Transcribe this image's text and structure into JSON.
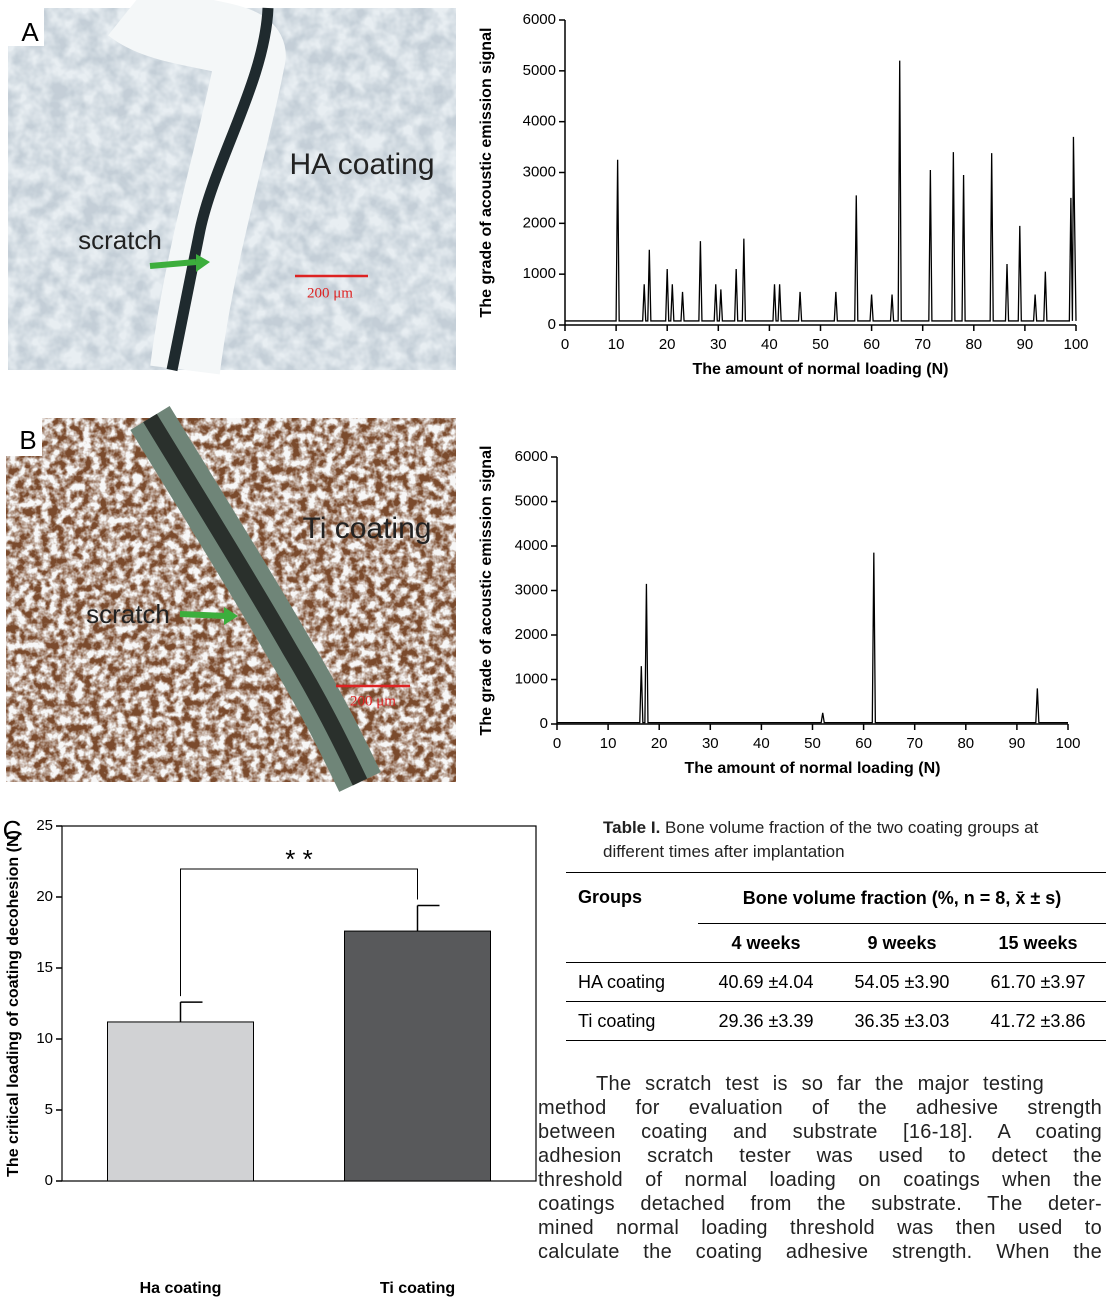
{
  "figure_panels": [
    {
      "label": "A",
      "photo_labels": {
        "coating": "HA coating",
        "arrow": "scratch",
        "scale": "200 μm"
      }
    },
    {
      "label": "B",
      "photo_labels": {
        "coating": "Ti coating",
        "arrow": "scratch",
        "scale": "200 μm"
      }
    },
    {
      "label": "C"
    }
  ],
  "chart_data": [
    {
      "type": "line",
      "y_label": "The grade of acoustic emission signal",
      "x_label": "The amount of normal loading (N)",
      "x": [
        0,
        10,
        10.3,
        10.6,
        15.2,
        15.5,
        15.8,
        16.2,
        16.5,
        16.8,
        19.7,
        20,
        20.3,
        20.7,
        21,
        21.3,
        22.7,
        23,
        23.3,
        26.2,
        26.5,
        26.8,
        29.2,
        29.5,
        29.8,
        30.2,
        30.5,
        30.8,
        33.2,
        33.5,
        33.8,
        34.7,
        35,
        35.3,
        40.7,
        41,
        41.3,
        41.7,
        42,
        42.3,
        45.7,
        46,
        46.3,
        52.7,
        53,
        53.3,
        56.7,
        57,
        57.3,
        59.7,
        60,
        60.3,
        63.7,
        64,
        64.3,
        65.2,
        65.5,
        65.8,
        71.2,
        71.5,
        71.8,
        75.7,
        76,
        76.3,
        77.7,
        78,
        78.3,
        83.2,
        83.5,
        83.8,
        86.2,
        86.5,
        86.8,
        88.7,
        89,
        89.3,
        91.7,
        92,
        92.3,
        93.7,
        94,
        94.3,
        98.7,
        99,
        99.3,
        99.5,
        100
      ],
      "series": [
        {
          "color": "#000000",
          "values": [
            80,
            80,
            3250,
            80,
            80,
            800,
            80,
            80,
            1480,
            80,
            80,
            1100,
            80,
            80,
            800,
            80,
            80,
            650,
            80,
            80,
            1650,
            80,
            80,
            800,
            80,
            80,
            700,
            80,
            80,
            1100,
            80,
            80,
            1700,
            80,
            80,
            800,
            80,
            80,
            800,
            80,
            80,
            650,
            80,
            80,
            650,
            80,
            80,
            2550,
            80,
            80,
            600,
            80,
            80,
            600,
            80,
            80,
            5200,
            80,
            80,
            3050,
            80,
            80,
            3400,
            80,
            80,
            2950,
            80,
            80,
            3380,
            80,
            80,
            1200,
            80,
            80,
            1950,
            80,
            80,
            600,
            80,
            80,
            1050,
            80,
            80,
            2500,
            80,
            3700,
            80
          ]
        }
      ],
      "xlim": [
        0,
        100
      ],
      "ylim": [
        0,
        6000
      ],
      "xticks": [
        0,
        10,
        20,
        30,
        40,
        50,
        60,
        70,
        80,
        90,
        100
      ],
      "yticks": [
        0,
        1000,
        2000,
        3000,
        4000,
        5000,
        6000
      ]
    },
    {
      "type": "line",
      "y_label": "The grade of acoustic emission signal",
      "x_label": "The amount of normal loading (N)",
      "x": [
        0,
        16.2,
        16.5,
        16.8,
        17.2,
        17.5,
        17.8,
        51.7,
        52,
        52.3,
        61.7,
        62,
        62.3,
        93.7,
        94,
        94.3,
        100
      ],
      "series": [
        {
          "color": "#000000",
          "values": [
            30,
            30,
            1300,
            30,
            30,
            3150,
            30,
            30,
            250,
            30,
            30,
            3850,
            30,
            30,
            800,
            30,
            30
          ]
        }
      ],
      "xlim": [
        0,
        100
      ],
      "ylim": [
        0,
        6000
      ],
      "xticks": [
        0,
        10,
        20,
        30,
        40,
        50,
        60,
        70,
        80,
        90,
        100
      ],
      "yticks": [
        0,
        1000,
        2000,
        3000,
        4000,
        5000,
        6000
      ]
    },
    {
      "type": "bar",
      "y_label": "The critical loading of coating decohesion (N)",
      "categories": [
        "Ha coating",
        "Ti coating"
      ],
      "values": [
        11.2,
        17.6
      ],
      "errors": [
        1.4,
        1.8
      ],
      "colors": [
        "#d1d2d4",
        "#58595b"
      ],
      "annotation": "* *",
      "ylim": [
        0,
        25
      ],
      "yticks": [
        0,
        5,
        10,
        15,
        20,
        25
      ]
    }
  ],
  "table": {
    "caption_label": "Table I.",
    "caption_text": "Bone volume fraction of the two coating groups at different times after implantation",
    "header": [
      "Groups",
      "Bone volume fraction (%, n = 8, x̄ ± s)"
    ],
    "subheader": [
      "4 weeks",
      "9 weeks",
      "15 weeks"
    ],
    "rows": [
      [
        "HA coating",
        "40.69 ±4.04",
        "54.05 ±3.90",
        "61.70 ±3.97"
      ],
      [
        "Ti coating",
        "29.36 ±3.39",
        "36.35 ±3.03",
        "41.72 ±3.86"
      ]
    ]
  },
  "body_text": [
    "The scratch test is so far the major testing",
    "method for evaluation of the adhesive strength",
    "between coating and substrate [16-18]. A coating",
    "adhesion scratch tester was used to detect the",
    "threshold of normal loading on coatings when the",
    "coatings detached from the substrate. The deter-",
    "mined normal loading threshold was then used to",
    "calculate the coating adhesive strength. When the"
  ]
}
